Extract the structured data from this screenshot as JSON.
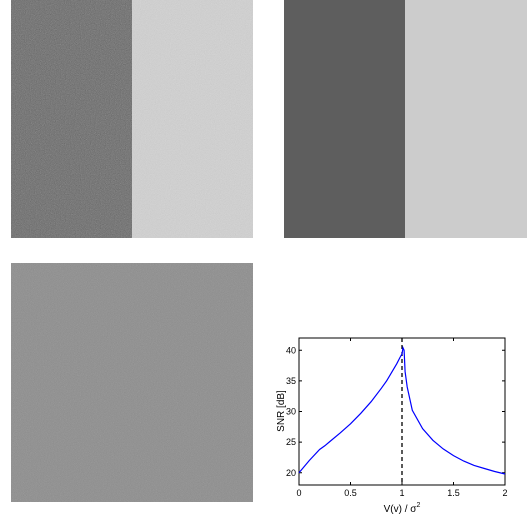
{
  "figure": {
    "panels": [
      {
        "name": "noisy-two-region-image",
        "left_gray": "#5a5a5a",
        "right_gray": "#d4d4d4",
        "noise": "strong"
      },
      {
        "name": "denoised-two-region-image",
        "left_gray": "#5e5e5e",
        "right_gray": "#cccccc",
        "noise": "none"
      },
      {
        "name": "noise-only-image",
        "gray": "#8a8a8a",
        "noise": "moderate"
      }
    ]
  },
  "chart_data": {
    "type": "line",
    "xlabel": "V(v) / σ",
    "xlabel_superscript": "2",
    "ylabel": "SNR [dB]",
    "xlim": [
      0,
      2
    ],
    "ylim": [
      18,
      42
    ],
    "xticks": [
      "0",
      "0.5",
      "1",
      "1.5",
      "2"
    ],
    "xtick_values": [
      0,
      0.5,
      1,
      1.5,
      2
    ],
    "yticks": [
      "20",
      "25",
      "30",
      "35",
      "40"
    ],
    "ytick_values": [
      20,
      25,
      30,
      35,
      40
    ],
    "grid": false,
    "series": [
      {
        "color": "#0000ff",
        "x": [
          0,
          0.1,
          0.2,
          0.25,
          0.3,
          0.4,
          0.5,
          0.6,
          0.7,
          0.8,
          0.85,
          0.9,
          0.95,
          0.98,
          1.0,
          1.01,
          1.02,
          1.03,
          1.05,
          1.1,
          1.2,
          1.3,
          1.4,
          1.5,
          1.6,
          1.7,
          1.8,
          1.9,
          2.0
        ],
        "y": [
          20.0,
          22.0,
          23.8,
          24.4,
          25.1,
          26.5,
          28.0,
          29.7,
          31.6,
          33.8,
          35.0,
          36.4,
          37.8,
          38.8,
          39.4,
          40.4,
          40.0,
          36.5,
          34.0,
          30.2,
          27.2,
          25.3,
          23.9,
          22.8,
          21.9,
          21.2,
          20.7,
          20.2,
          19.8
        ]
      }
    ],
    "reference_line": {
      "x": 1.0,
      "style": "dashed",
      "color": "#000000"
    }
  }
}
